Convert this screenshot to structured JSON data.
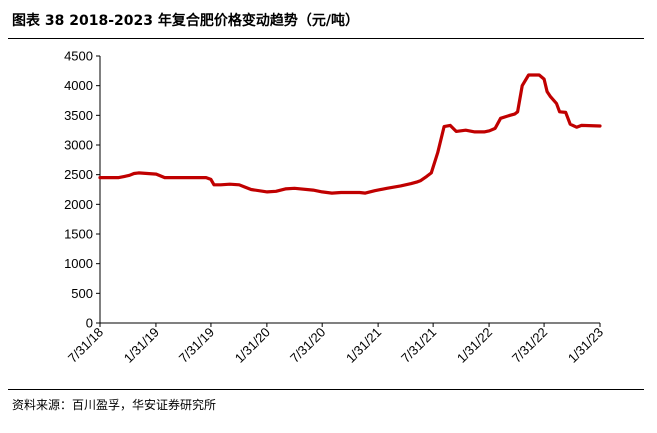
{
  "header": {
    "title": "图表 38 2018-2023 年复合肥价格变动趋势（元/吨）"
  },
  "footer": {
    "source": "资料来源：百川盈孚，华安证券研究所"
  },
  "chart_data": {
    "type": "line",
    "title": "图表 38 2018-2023 年复合肥价格变动趋势（元/吨）",
    "xlabel": "",
    "ylabel": "",
    "ylim": [
      0,
      4500
    ],
    "yticks": [
      0,
      500,
      1000,
      1500,
      2000,
      2500,
      3000,
      3500,
      4000,
      4500
    ],
    "xlim": [
      "2018-07-31",
      "2023-01-31"
    ],
    "xticks": [
      "7/31/18",
      "1/31/19",
      "7/31/19",
      "1/31/20",
      "7/31/20",
      "1/31/21",
      "7/31/21",
      "1/31/22",
      "7/31/22",
      "1/31/23"
    ],
    "grid": false,
    "legend": "none",
    "line_color": "#c00000",
    "series": [
      {
        "x": [
          "2018-07-31",
          "2018-10-01",
          "2018-10-20",
          "2018-11-05",
          "2018-11-20",
          "2018-12-05",
          "2019-02-01",
          "2019-03-01",
          "2019-07-15",
          "2019-07-31",
          "2019-08-10",
          "2019-09-01",
          "2019-10-01",
          "2019-11-01",
          "2019-11-20",
          "2019-12-10",
          "2020-02-01",
          "2020-03-01",
          "2020-04-01",
          "2020-05-01",
          "2020-07-01",
          "2020-07-31",
          "2020-09-01",
          "2020-10-01",
          "2020-12-01",
          "2020-12-20",
          "2021-01-20",
          "2021-03-01",
          "2021-04-15",
          "2021-05-20",
          "2021-06-10",
          "2021-06-20",
          "2021-07-10",
          "2021-07-25",
          "2021-08-15",
          "2021-09-05",
          "2021-09-25",
          "2021-10-15",
          "2021-11-15",
          "2021-12-15",
          "2022-01-15",
          "2022-02-01",
          "2022-02-20",
          "2022-03-10",
          "2022-04-10",
          "2022-04-25",
          "2022-05-05",
          "2022-05-20",
          "2022-06-10",
          "2022-07-15",
          "2022-07-31",
          "2022-08-10",
          "2022-08-20",
          "2022-09-10",
          "2022-09-20",
          "2022-10-10",
          "2022-10-25",
          "2022-11-15",
          "2022-12-01",
          "2023-01-31"
        ],
        "y": [
          2450,
          2450,
          2470,
          2490,
          2520,
          2530,
          2510,
          2450,
          2450,
          2420,
          2330,
          2330,
          2340,
          2330,
          2290,
          2250,
          2210,
          2220,
          2260,
          2270,
          2240,
          2210,
          2190,
          2200,
          2200,
          2190,
          2230,
          2270,
          2310,
          2350,
          2380,
          2400,
          2470,
          2530,
          2870,
          3310,
          3330,
          3230,
          3250,
          3220,
          3220,
          3240,
          3280,
          3450,
          3500,
          3520,
          3560,
          4000,
          4180,
          4180,
          4110,
          3900,
          3820,
          3700,
          3560,
          3550,
          3350,
          3300,
          3330,
          3320
        ]
      }
    ]
  }
}
